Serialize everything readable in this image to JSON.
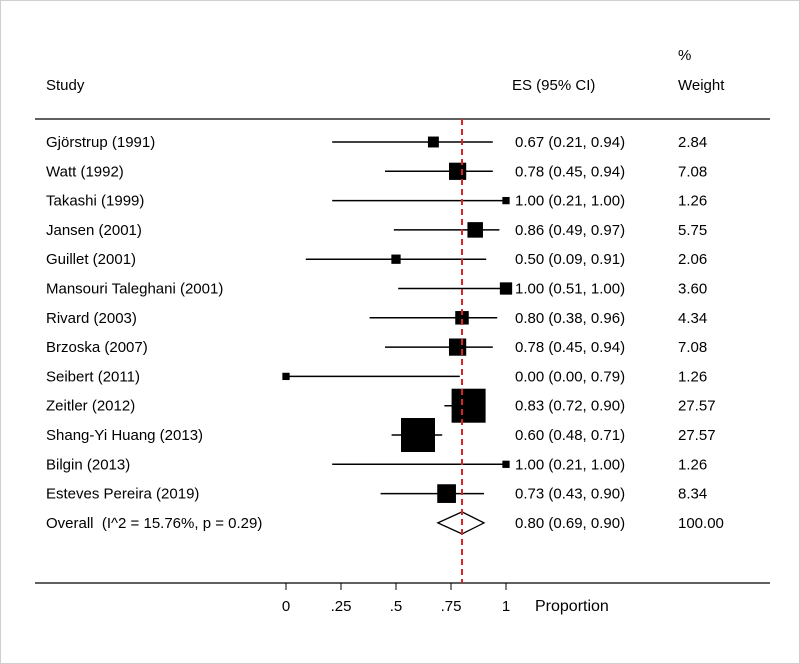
{
  "chart_data": {
    "type": "forest",
    "headers": {
      "study": "Study",
      "es": "ES (95% CI)",
      "weight_line1": "%",
      "weight_line2": "Weight"
    },
    "studies": [
      {
        "label": "Gjörstrup (1991)",
        "es": 0.67,
        "lo": 0.21,
        "hi": 0.94,
        "ci_text": "0.67 (0.21, 0.94)",
        "weight": 2.84,
        "weight_text": "2.84"
      },
      {
        "label": "Watt (1992)",
        "es": 0.78,
        "lo": 0.45,
        "hi": 0.94,
        "ci_text": "0.78 (0.45, 0.94)",
        "weight": 7.08,
        "weight_text": "7.08"
      },
      {
        "label": "Takashi (1999)",
        "es": 1.0,
        "lo": 0.21,
        "hi": 1.0,
        "ci_text": "1.00 (0.21, 1.00)",
        "weight": 1.26,
        "weight_text": "1.26"
      },
      {
        "label": "Jansen (2001)",
        "es": 0.86,
        "lo": 0.49,
        "hi": 0.97,
        "ci_text": "0.86 (0.49, 0.97)",
        "weight": 5.75,
        "weight_text": "5.75"
      },
      {
        "label": "Guillet (2001)",
        "es": 0.5,
        "lo": 0.09,
        "hi": 0.91,
        "ci_text": "0.50 (0.09, 0.91)",
        "weight": 2.06,
        "weight_text": "2.06"
      },
      {
        "label": "Mansouri Taleghani (2001)",
        "es": 1.0,
        "lo": 0.51,
        "hi": 1.0,
        "ci_text": "1.00 (0.51, 1.00)",
        "weight": 3.6,
        "weight_text": "3.60"
      },
      {
        "label": "Rivard (2003)",
        "es": 0.8,
        "lo": 0.38,
        "hi": 0.96,
        "ci_text": "0.80 (0.38, 0.96)",
        "weight": 4.34,
        "weight_text": "4.34"
      },
      {
        "label": "Brzoska (2007)",
        "es": 0.78,
        "lo": 0.45,
        "hi": 0.94,
        "ci_text": "0.78 (0.45, 0.94)",
        "weight": 7.08,
        "weight_text": "7.08"
      },
      {
        "label": "Seibert (2011)",
        "es": 0.0,
        "lo": 0.0,
        "hi": 0.79,
        "ci_text": "0.00 (0.00, 0.79)",
        "weight": 1.26,
        "weight_text": "1.26"
      },
      {
        "label": "Zeitler (2012)",
        "es": 0.83,
        "lo": 0.72,
        "hi": 0.9,
        "ci_text": "0.83 (0.72, 0.90)",
        "weight": 27.57,
        "weight_text": "27.57"
      },
      {
        "label": "Shang-Yi Huang (2013)",
        "es": 0.6,
        "lo": 0.48,
        "hi": 0.71,
        "ci_text": "0.60 (0.48, 0.71)",
        "weight": 27.57,
        "weight_text": "27.57"
      },
      {
        "label": "Bilgin (2013)",
        "es": 1.0,
        "lo": 0.21,
        "hi": 1.0,
        "ci_text": "1.00 (0.21, 1.00)",
        "weight": 1.26,
        "weight_text": "1.26"
      },
      {
        "label": "Esteves Pereira (2019)",
        "es": 0.73,
        "lo": 0.43,
        "hi": 0.9,
        "ci_text": "0.73 (0.43, 0.90)",
        "weight": 8.34,
        "weight_text": "8.34"
      }
    ],
    "overall": {
      "label": "Overall  (I^2 = 15.76%, p = 0.29)",
      "es": 0.8,
      "lo": 0.69,
      "hi": 0.9,
      "ci_text": "0.80 (0.69, 0.90)",
      "weight_text": "100.00"
    },
    "x_axis": {
      "label": "Proportion",
      "ticks": [
        0,
        0.25,
        0.5,
        0.75,
        1
      ],
      "tick_labels": [
        "0",
        ".25",
        ".5",
        ".75",
        "1"
      ],
      "range": [
        0,
        1
      ]
    },
    "reference_line": {
      "value": 0.8,
      "color": "#d62728",
      "style": "dashed"
    },
    "colors": {
      "marker": "#000000",
      "line": "#000000",
      "frame": "#cfcfcf"
    }
  }
}
